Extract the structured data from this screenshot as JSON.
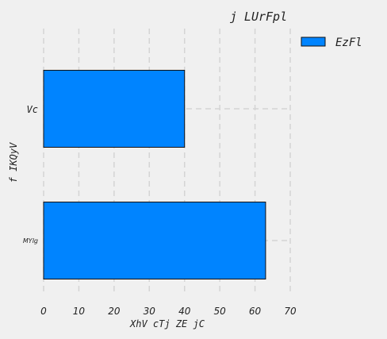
{
  "chart_data": {
    "type": "bar",
    "orientation": "horizontal",
    "title": "j LUrFpl",
    "xlabel": "XhV cTj ZE  jC",
    "ylabel": "f  IKQyV",
    "categories": [
      "MYlg",
      "Vc"
    ],
    "series": [
      {
        "name": "EzFl",
        "values": [
          63,
          40
        ],
        "color": "#0084ff"
      }
    ],
    "xlim": [
      0,
      70
    ],
    "xticks": [
      "0",
      "10",
      "20",
      "30",
      "40",
      "50",
      "60",
      "70"
    ],
    "grid": true,
    "legend": "top-right"
  }
}
